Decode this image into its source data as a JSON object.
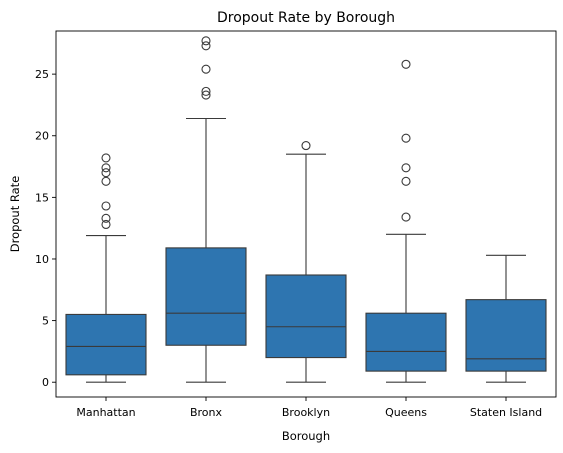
{
  "chart_data": {
    "type": "box",
    "title": "Dropout Rate by Borough",
    "xlabel": "Borough",
    "ylabel": "Dropout Rate",
    "ylim": [
      -1.2,
      28.5
    ],
    "yticks": [
      0,
      5,
      10,
      15,
      20,
      25
    ],
    "box_color": "#2e75b0",
    "line_color": "#3a3a3a",
    "categories": [
      "Manhattan",
      "Bronx",
      "Brooklyn",
      "Queens",
      "Staten Island"
    ],
    "boxes": [
      {
        "name": "Manhattan",
        "min": 0,
        "q1": 0.6,
        "median": 2.9,
        "q3": 5.5,
        "max": 11.9,
        "outliers": [
          12.8,
          13.3,
          14.3,
          16.3,
          17.0,
          17.4,
          18.2
        ]
      },
      {
        "name": "Bronx",
        "min": 0,
        "q1": 3.0,
        "median": 5.6,
        "q3": 10.9,
        "max": 21.4,
        "outliers": [
          23.3,
          23.6,
          25.4,
          27.3,
          27.7
        ]
      },
      {
        "name": "Brooklyn",
        "min": 0,
        "q1": 2.0,
        "median": 4.5,
        "q3": 8.7,
        "max": 18.5,
        "outliers": [
          19.2
        ]
      },
      {
        "name": "Queens",
        "min": 0,
        "q1": 0.9,
        "median": 2.5,
        "q3": 5.6,
        "max": 12.0,
        "outliers": [
          13.4,
          16.3,
          17.4,
          19.8,
          25.8
        ]
      },
      {
        "name": "Staten Island",
        "min": 0,
        "q1": 0.9,
        "median": 1.9,
        "q3": 6.7,
        "max": 10.3,
        "outliers": []
      }
    ]
  }
}
